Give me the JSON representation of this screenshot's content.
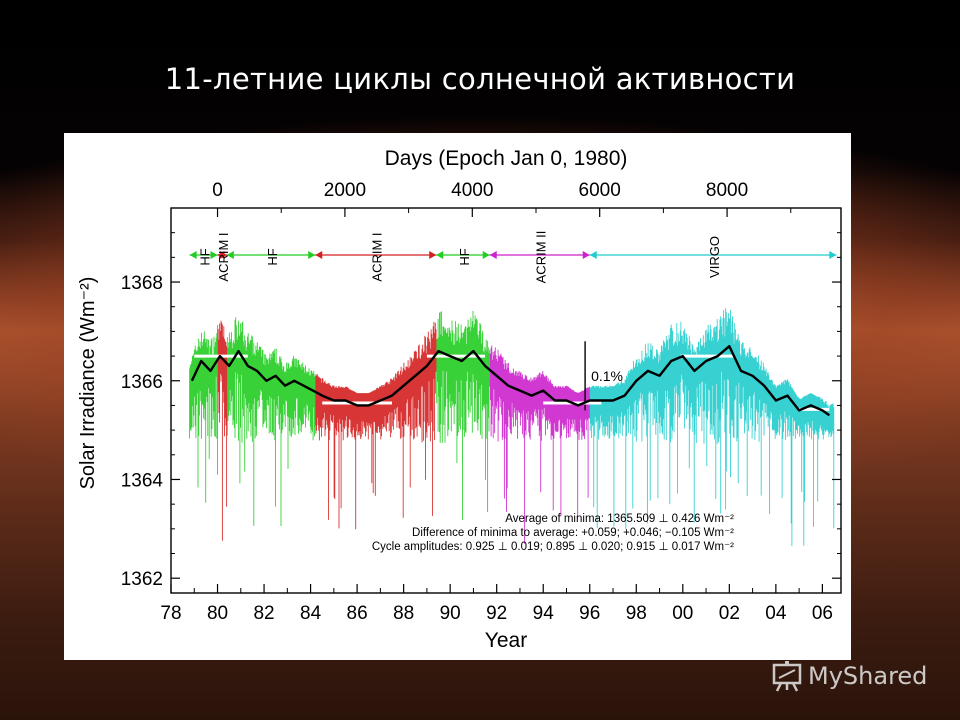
{
  "slide": {
    "title": "11-летние циклы солнечной активности"
  },
  "watermark": {
    "text": "MyShared",
    "icon": "presentation-board-icon"
  },
  "chart_data": {
    "type": "line",
    "title": "",
    "xlabel": "Year",
    "ylabel": "Solar Irradiance (Wm⁻²)",
    "x2label": "Days (Epoch Jan 0, 1980)",
    "xlim": [
      1978,
      2006.8
    ],
    "ylim": [
      1361.7,
      1369.5
    ],
    "x_ticks": [
      {
        "v": 1978,
        "label": "78"
      },
      {
        "v": 1980,
        "label": "80"
      },
      {
        "v": 1982,
        "label": "82"
      },
      {
        "v": 1984,
        "label": "84"
      },
      {
        "v": 1986,
        "label": "86"
      },
      {
        "v": 1988,
        "label": "88"
      },
      {
        "v": 1990,
        "label": "90"
      },
      {
        "v": 1992,
        "label": "92"
      },
      {
        "v": 1994,
        "label": "94"
      },
      {
        "v": 1996,
        "label": "96"
      },
      {
        "v": 1998,
        "label": "98"
      },
      {
        "v": 2000,
        "label": "00"
      },
      {
        "v": 2002,
        "label": "02"
      },
      {
        "v": 2004,
        "label": "04"
      },
      {
        "v": 2006,
        "label": "06"
      }
    ],
    "y_ticks": [
      {
        "v": 1362,
        "label": "1362"
      },
      {
        "v": 1364,
        "label": "1364"
      },
      {
        "v": 1366,
        "label": "1366"
      },
      {
        "v": 1368,
        "label": "1368"
      }
    ],
    "x2_ticks": [
      {
        "v": 0,
        "label": "0"
      },
      {
        "v": 2000,
        "label": "2000"
      },
      {
        "v": 4000,
        "label": "4000"
      },
      {
        "v": 6000,
        "label": "6000"
      },
      {
        "v": 8000,
        "label": "8000"
      }
    ],
    "scale_bar": {
      "label": "0.1%",
      "y_from": 1365.4,
      "y_to": 1366.8,
      "x": 1995.8
    },
    "instruments": [
      {
        "name": "HF",
        "start": 1978.8,
        "end": 1980.0,
        "color": "#22cc22"
      },
      {
        "name": "ACRIM I",
        "start": 1980.0,
        "end": 1980.4,
        "color": "#d42020"
      },
      {
        "name": "HF",
        "start": 1980.4,
        "end": 1984.2,
        "color": "#22cc22"
      },
      {
        "name": "ACRIM I",
        "start": 1984.2,
        "end": 1989.4,
        "color": "#d42020"
      },
      {
        "name": "HF",
        "start": 1989.4,
        "end": 1991.7,
        "color": "#22cc22"
      },
      {
        "name": "ACRIM II",
        "start": 1991.7,
        "end": 1996.0,
        "color": "#cc22cc"
      },
      {
        "name": "VIRGO",
        "start": 1996.0,
        "end": 2006.6,
        "color": "#22cccc"
      }
    ],
    "minima_levels": [
      {
        "from": 1984.5,
        "to": 1987.5,
        "y": 1365.55
      },
      {
        "from": 1994.0,
        "to": 1996.5,
        "y": 1365.55
      },
      {
        "from": 2005.0,
        "to": 2006.3,
        "y": 1365.42
      }
    ],
    "maxima_levels": [
      {
        "from": 1979.0,
        "to": 1981.3,
        "y": 1366.5
      },
      {
        "from": 1989.0,
        "to": 1991.5,
        "y": 1366.5
      },
      {
        "from": 1999.9,
        "to": 2002.2,
        "y": 1366.5
      }
    ],
    "series": [
      {
        "name": "",
        "color": "#000000",
        "x": [
          1978.9,
          1979.3,
          1979.7,
          1980.1,
          1980.5,
          1980.9,
          1981.3,
          1981.7,
          1982.1,
          1982.5,
          1982.9,
          1983.3,
          1983.7,
          1984.1,
          1984.5,
          1985.0,
          1985.5,
          1986.0,
          1986.5,
          1987.0,
          1987.5,
          1988.0,
          1988.5,
          1989.0,
          1989.5,
          1990.0,
          1990.5,
          1991.0,
          1991.5,
          1992.0,
          1992.5,
          1993.0,
          1993.5,
          1994.0,
          1994.5,
          1995.0,
          1995.5,
          1996.0,
          1996.5,
          1997.0,
          1997.5,
          1998.0,
          1998.5,
          1999.0,
          1999.5,
          2000.0,
          2000.5,
          2001.0,
          2001.5,
          2002.0,
          2002.5,
          2003.0,
          2003.5,
          2004.0,
          2004.5,
          2005.0,
          2005.5,
          2006.0,
          2006.3
        ],
        "y": [
          1366.0,
          1366.4,
          1366.2,
          1366.5,
          1366.3,
          1366.6,
          1366.3,
          1366.2,
          1366.0,
          1366.1,
          1365.9,
          1366.0,
          1365.9,
          1365.8,
          1365.7,
          1365.6,
          1365.6,
          1365.5,
          1365.5,
          1365.6,
          1365.7,
          1365.9,
          1366.1,
          1366.3,
          1366.6,
          1366.5,
          1366.4,
          1366.6,
          1366.3,
          1366.1,
          1365.9,
          1365.8,
          1365.7,
          1365.8,
          1365.6,
          1365.6,
          1365.5,
          1365.6,
          1365.6,
          1365.6,
          1365.7,
          1366.0,
          1366.2,
          1366.1,
          1366.4,
          1366.5,
          1366.2,
          1366.4,
          1366.5,
          1366.7,
          1366.2,
          1366.1,
          1365.9,
          1365.6,
          1365.7,
          1365.4,
          1365.5,
          1365.4,
          1365.3
        ]
      }
    ],
    "annotations": [
      "Average of minima:  1365.509 ⊥ 0.426 Wm⁻²",
      "Difference of minima to average: +0.059; +0.046; −0.105 Wm⁻²",
      "Cycle amplitudes:  0.925 ⊥ 0.019; 0.895 ⊥ 0.020; 0.915 ⊥ 0.017 Wm⁻²"
    ],
    "grid": false
  }
}
